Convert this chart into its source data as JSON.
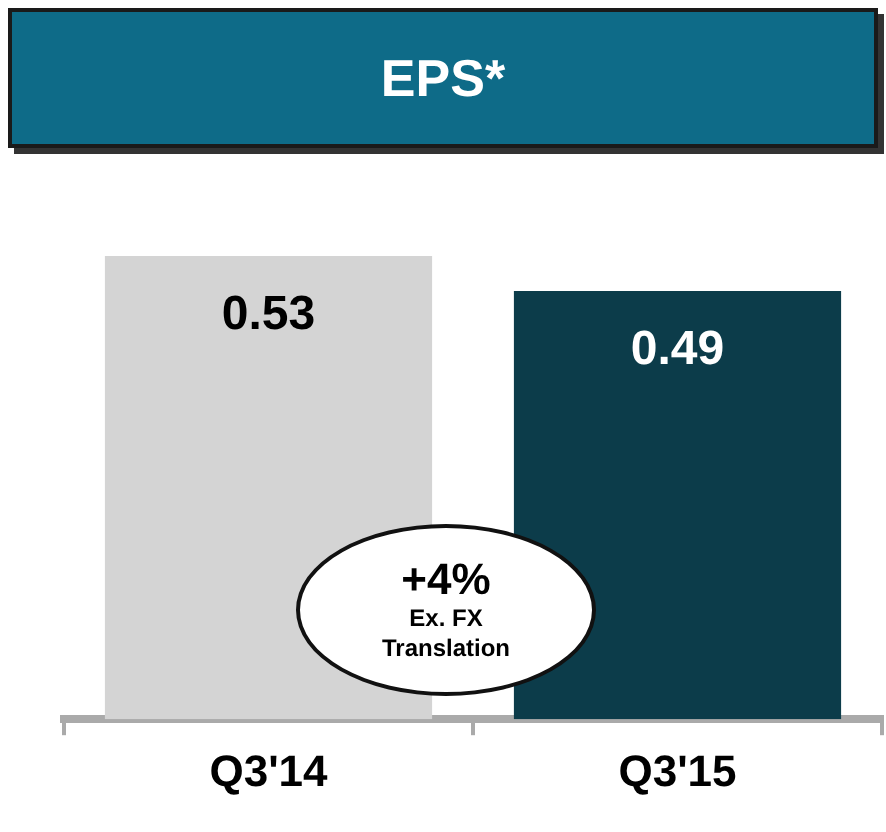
{
  "chart_data": {
    "type": "bar",
    "title": "EPS*",
    "categories": [
      "Q3'14",
      "Q3'15"
    ],
    "values": [
      0.53,
      0.49
    ],
    "colors": [
      "#d4d4d4",
      "#0c3c4a"
    ],
    "data_labels": true,
    "grid": false,
    "legend": false,
    "annotations": [
      "+4%",
      "Ex. FX Translation"
    ]
  }
}
